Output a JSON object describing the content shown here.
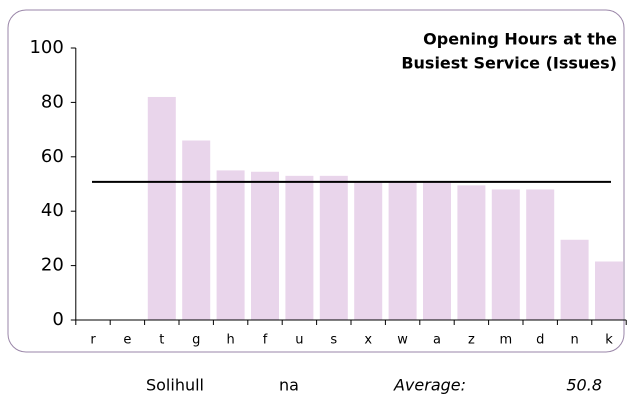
{
  "chart_data": {
    "type": "bar",
    "title": [
      "Opening Hours at the",
      "Busiest Service (Issues)"
    ],
    "categories": [
      "r",
      "e",
      "t",
      "g",
      "h",
      "f",
      "u",
      "s",
      "x",
      "w",
      "a",
      "z",
      "m",
      "d",
      "n",
      "k"
    ],
    "values": [
      null,
      null,
      82,
      66,
      55,
      54.5,
      53,
      53,
      51,
      51,
      51,
      49.5,
      48,
      48,
      29.5,
      21.5
    ],
    "color": "#e9d5eb",
    "average": 50.8,
    "ylim": [
      0,
      100
    ],
    "yticks": [
      0,
      20,
      40,
      60,
      80,
      100
    ]
  },
  "footer": {
    "name": "Solihull",
    "value": "na",
    "average_label": "Average:"
  }
}
